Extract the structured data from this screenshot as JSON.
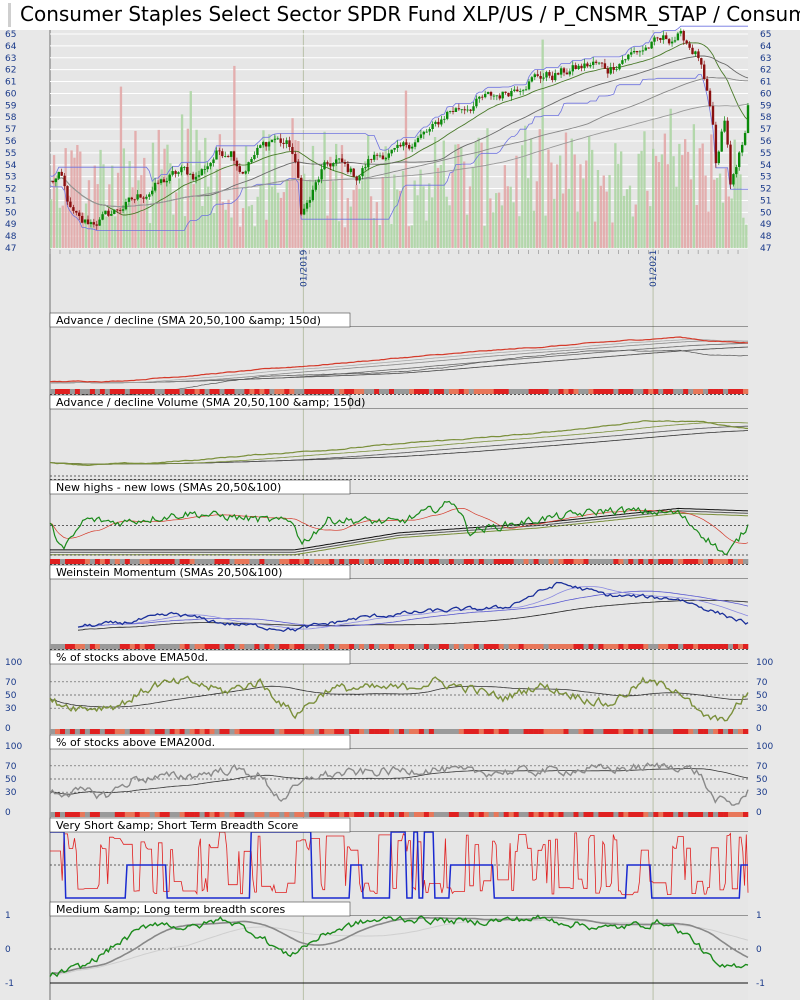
{
  "title": "Consumer Staples Select Sector SPDR Fund XLP/US / P_CNSMR_STAP / Consum",
  "colors": {
    "background": "#e8e8e8",
    "panel": "#e6e6e6",
    "grid": "#ffffff",
    "axis_text": "#1a3a8a",
    "candle_up": "#0a8a0a",
    "candle_down": "#8a1010",
    "volume_up": "#a9d3a0",
    "volume_down": "#e2a3a3",
    "envelope": "#6f73e0",
    "sma": "#555555",
    "ad_line": "#d43a2a",
    "olive": "#7a8f3a",
    "green": "#1a8a1a",
    "navy": "#1a2f9a",
    "gray_line": "#8a8a8a",
    "breadth_red": "#e02020",
    "breadth_blue": "#1a2ad0",
    "strip_red": "#e02020",
    "strip_salmon": "#e8775a",
    "strip_gray": "#9a9a9a"
  },
  "chart_data": [
    {
      "type": "candlestick",
      "title": "",
      "ylim": [
        47,
        65
      ],
      "y_ticks": [
        "65",
        "64",
        "63",
        "62",
        "61",
        "60",
        "59",
        "58",
        "57",
        "56",
        "55",
        "54",
        "53",
        "52",
        "51",
        "50",
        "49",
        "48",
        "47"
      ],
      "x_ticks": [
        {
          "label": "01/2019",
          "t": 0.363
        },
        {
          "label": "01/2021",
          "t": 0.864
        }
      ],
      "anchors": [
        [
          0,
          52.5
        ],
        [
          0.015,
          53
        ],
        [
          0.03,
          50
        ],
        [
          0.045,
          49
        ],
        [
          0.07,
          49.3
        ],
        [
          0.09,
          50
        ],
        [
          0.12,
          51
        ],
        [
          0.16,
          52.5
        ],
        [
          0.19,
          53.5
        ],
        [
          0.21,
          53
        ],
        [
          0.24,
          55
        ],
        [
          0.26,
          55.3
        ],
        [
          0.275,
          53.5
        ],
        [
          0.3,
          55.3
        ],
        [
          0.32,
          56.3
        ],
        [
          0.345,
          55.5
        ],
        [
          0.355,
          53
        ],
        [
          0.36,
          50
        ],
        [
          0.372,
          51
        ],
        [
          0.39,
          53.5
        ],
        [
          0.41,
          54.3
        ],
        [
          0.44,
          53
        ],
        [
          0.46,
          54.5
        ],
        [
          0.48,
          55
        ],
        [
          0.5,
          55
        ],
        [
          0.52,
          56
        ],
        [
          0.55,
          57
        ],
        [
          0.57,
          58.5
        ],
        [
          0.6,
          59
        ],
        [
          0.62,
          59.5
        ],
        [
          0.65,
          60
        ],
        [
          0.68,
          61
        ],
        [
          0.7,
          61.5
        ],
        [
          0.72,
          61.5
        ],
        [
          0.75,
          62
        ],
        [
          0.78,
          62.5
        ],
        [
          0.8,
          62
        ],
        [
          0.82,
          63
        ],
        [
          0.84,
          63.5
        ],
        [
          0.86,
          64
        ],
        [
          0.88,
          64.5
        ],
        [
          0.9,
          64.8
        ],
        [
          0.91,
          64.5
        ],
        [
          0.93,
          63
        ],
        [
          0.94,
          60
        ],
        [
          0.95,
          57
        ],
        [
          0.955,
          53
        ],
        [
          0.965,
          58
        ],
        [
          0.97,
          56
        ],
        [
          0.975,
          52
        ],
        [
          0.985,
          54.5
        ],
        [
          0.993,
          55.5
        ],
        [
          1.0,
          59
        ]
      ]
    },
    {
      "type": "line",
      "title": "Advance / decline (SMA 20,50,100 &amp; 150d)",
      "ylim": [
        0,
        1
      ],
      "anchors": [
        [
          0,
          0.1
        ],
        [
          0.1,
          0.12
        ],
        [
          0.3,
          0.3
        ],
        [
          0.5,
          0.5
        ],
        [
          0.7,
          0.68
        ],
        [
          0.9,
          0.85
        ],
        [
          0.95,
          0.78
        ],
        [
          1,
          0.76
        ]
      ],
      "strip": true
    },
    {
      "type": "line",
      "title": "Advance / decline Volume (SMA 20,50,100 &amp; 150d)",
      "ylim": [
        0,
        1
      ],
      "anchors": [
        [
          0,
          0.15
        ],
        [
          0.05,
          0.12
        ],
        [
          0.15,
          0.14
        ],
        [
          0.3,
          0.28
        ],
        [
          0.5,
          0.45
        ],
        [
          0.7,
          0.62
        ],
        [
          0.85,
          0.82
        ],
        [
          0.93,
          0.82
        ],
        [
          1,
          0.7
        ]
      ],
      "strip": false
    },
    {
      "type": "line",
      "title": "New highs - new lows (SMAs 20,50&100)",
      "ylim": [
        0,
        1
      ],
      "anchors": [
        [
          0,
          0.5
        ],
        [
          0.02,
          0.1
        ],
        [
          0.05,
          0.6
        ],
        [
          0.1,
          0.55
        ],
        [
          0.2,
          0.7
        ],
        [
          0.35,
          0.55
        ],
        [
          0.36,
          0.2
        ],
        [
          0.4,
          0.6
        ],
        [
          0.5,
          0.55
        ],
        [
          0.58,
          0.9
        ],
        [
          0.6,
          0.4
        ],
        [
          0.7,
          0.6
        ],
        [
          0.8,
          0.75
        ],
        [
          0.9,
          0.7
        ],
        [
          0.97,
          0.0
        ],
        [
          1,
          0.5
        ]
      ],
      "strip": true
    },
    {
      "type": "line",
      "title": "Weinstein Momentum (SMAs 20,50&100)",
      "ylim": [
        0,
        1
      ],
      "anchors": [
        [
          0.04,
          0.25
        ],
        [
          0.1,
          0.3
        ],
        [
          0.18,
          0.45
        ],
        [
          0.25,
          0.3
        ],
        [
          0.35,
          0.2
        ],
        [
          0.45,
          0.4
        ],
        [
          0.55,
          0.5
        ],
        [
          0.65,
          0.55
        ],
        [
          0.73,
          0.95
        ],
        [
          0.8,
          0.75
        ],
        [
          0.9,
          0.7
        ],
        [
          1,
          0.3
        ]
      ],
      "strip": true
    },
    {
      "type": "line",
      "title": "% of stocks above EMA50d.",
      "ylim": [
        0,
        100
      ],
      "y_ticks_left": [
        "100",
        "70",
        "50",
        "30",
        "0"
      ],
      "y_ticks_right": [
        "100",
        "70",
        "50",
        "30",
        "0"
      ],
      "anchors": [
        [
          0,
          40
        ],
        [
          0.05,
          30
        ],
        [
          0.1,
          35
        ],
        [
          0.15,
          65
        ],
        [
          0.2,
          70
        ],
        [
          0.25,
          55
        ],
        [
          0.3,
          70
        ],
        [
          0.35,
          20
        ],
        [
          0.4,
          60
        ],
        [
          0.5,
          60
        ],
        [
          0.55,
          70
        ],
        [
          0.6,
          60
        ],
        [
          0.65,
          45
        ],
        [
          0.7,
          65
        ],
        [
          0.75,
          50
        ],
        [
          0.8,
          35
        ],
        [
          0.85,
          70
        ],
        [
          0.9,
          60
        ],
        [
          0.93,
          20
        ],
        [
          0.96,
          10
        ],
        [
          0.98,
          25
        ],
        [
          1,
          55
        ]
      ],
      "strip": true
    },
    {
      "type": "line",
      "title": "% of stocks above EMA200d.",
      "ylim": [
        0,
        100
      ],
      "y_ticks_left": [
        "100",
        "70",
        "50",
        "30",
        "0"
      ],
      "y_ticks_right": [
        "100",
        "70",
        "50",
        "30",
        "0"
      ],
      "anchors": [
        [
          0,
          30
        ],
        [
          0.05,
          30
        ],
        [
          0.08,
          25
        ],
        [
          0.12,
          50
        ],
        [
          0.2,
          55
        ],
        [
          0.26,
          65
        ],
        [
          0.3,
          55
        ],
        [
          0.33,
          20
        ],
        [
          0.38,
          55
        ],
        [
          0.45,
          60
        ],
        [
          0.55,
          65
        ],
        [
          0.6,
          60
        ],
        [
          0.7,
          62
        ],
        [
          0.8,
          65
        ],
        [
          0.9,
          70
        ],
        [
          0.93,
          60
        ],
        [
          0.95,
          20
        ],
        [
          0.98,
          10
        ],
        [
          1,
          30
        ]
      ],
      "strip": true
    },
    {
      "type": "line",
      "title": "Very Short &amp; Short Term Breadth Score",
      "ylim": [
        0,
        1
      ],
      "anchors": [
        [
          0,
          0.5
        ],
        [
          0.2,
          0.5
        ],
        [
          0.4,
          0.5
        ],
        [
          0.6,
          0.5
        ],
        [
          0.8,
          0.5
        ],
        [
          1,
          0.5
        ]
      ],
      "strip": false
    },
    {
      "type": "line",
      "title": "Medium &amp; Long term breadth scores",
      "ylim": [
        -1,
        1
      ],
      "y_ticks_left": [
        "1",
        "0",
        "-1"
      ],
      "y_ticks_right": [
        "1",
        "0",
        "-1"
      ],
      "anchors": [
        [
          0,
          -0.8
        ],
        [
          0.05,
          -0.5
        ],
        [
          0.1,
          0.2
        ],
        [
          0.15,
          0.8
        ],
        [
          0.2,
          0.6
        ],
        [
          0.25,
          0.9
        ],
        [
          0.3,
          0.4
        ],
        [
          0.34,
          -0.2
        ],
        [
          0.4,
          0.5
        ],
        [
          0.45,
          0.8
        ],
        [
          0.5,
          0.9
        ],
        [
          0.6,
          0.8
        ],
        [
          0.7,
          0.9
        ],
        [
          0.8,
          0.6
        ],
        [
          0.88,
          0.8
        ],
        [
          0.92,
          0.3
        ],
        [
          0.96,
          -0.6
        ],
        [
          1,
          -0.4
        ]
      ],
      "strip": false
    }
  ]
}
